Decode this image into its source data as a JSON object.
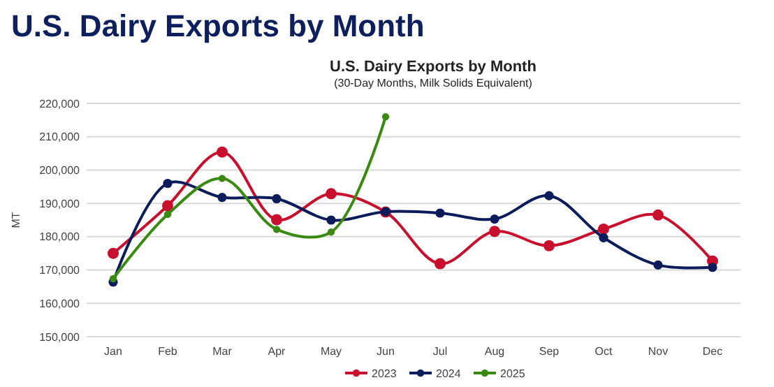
{
  "chart_data": {
    "type": "line",
    "title": "U.S. Dairy Exports by Month",
    "subtitle": "(30-Day Months, Milk Solids Equivalent)",
    "annotations": [
      "U.S. Dairy Exports by Month"
    ],
    "ylabel": "MT",
    "categories": [
      "Jan",
      "Feb",
      "Mar",
      "Apr",
      "May",
      "Jun",
      "Jul",
      "Aug",
      "Sep",
      "Oct",
      "Nov",
      "Dec"
    ],
    "series": [
      {
        "name": "2023",
        "color": "#c8102e",
        "values": [
          175000,
          189300,
          205400,
          185100,
          192900,
          187400,
          171900,
          181600,
          177300,
          182300,
          186500,
          172700
        ]
      },
      {
        "name": "2024",
        "color": "#0c1c5a",
        "values": [
          166400,
          196000,
          191800,
          191400,
          185000,
          187500,
          187100,
          185300,
          192300,
          179700,
          171500,
          170800
        ]
      },
      {
        "name": "2025",
        "color": "#3a8a12",
        "values": [
          167400,
          186700,
          197500,
          182200,
          181400,
          216000,
          null,
          null,
          null,
          null,
          null,
          null
        ]
      }
    ],
    "ylim": [
      150000,
      220000
    ],
    "yticks": [
      {
        "value": 150000,
        "label": "150,000"
      },
      {
        "value": 160000,
        "label": "160,000"
      },
      {
        "value": 170000,
        "label": "170,000"
      },
      {
        "value": 180000,
        "label": "180,000"
      },
      {
        "value": 190000,
        "label": "190,000"
      },
      {
        "value": 200000,
        "label": "200,000"
      },
      {
        "value": 210000,
        "label": "210,000"
      },
      {
        "value": 220000,
        "label": "220,000"
      }
    ],
    "grid": "y",
    "legend": "bottom",
    "marker": "circle",
    "line_style": "solid"
  }
}
